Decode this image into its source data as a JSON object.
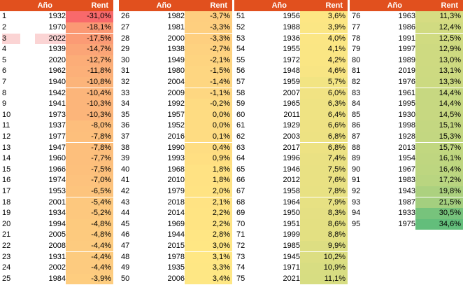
{
  "header": {
    "year_label": "Año",
    "rent_label": "Rent"
  },
  "colors": {
    "header": "#e1501e",
    "worst": "#f8696b",
    "mid": "#ffe784",
    "best": "#63be7b",
    "selected_row": "#fbd4d4"
  },
  "selected_rank": "3",
  "blocks": [
    [
      [
        "1",
        "1932",
        "-31,0%",
        -31.0
      ],
      [
        "2",
        "1970",
        "-18,1%",
        -18.1
      ],
      [
        "3",
        "2022",
        "-17,5%",
        -17.5
      ],
      [
        "4",
        "1939",
        "-14,7%",
        -14.7
      ],
      [
        "5",
        "2020",
        "-12,7%",
        -12.7
      ],
      [
        "6",
        "1962",
        "-11,8%",
        -11.8
      ],
      [
        "7",
        "1940",
        "-10,8%",
        -10.8
      ],
      [
        "8",
        "1942",
        "-10,4%",
        -10.4
      ],
      [
        "9",
        "1941",
        "-10,3%",
        -10.3
      ],
      [
        "10",
        "1973",
        "-10,3%",
        -10.3
      ],
      [
        "11",
        "1937",
        "-8,0%",
        -8.0
      ],
      [
        "12",
        "1977",
        "-7,8%",
        -7.8
      ],
      [
        "13",
        "1947",
        "-7,8%",
        -7.8
      ],
      [
        "14",
        "1960",
        "-7,7%",
        -7.7
      ],
      [
        "15",
        "1966",
        "-7,5%",
        -7.5
      ],
      [
        "16",
        "1974",
        "-7,0%",
        -7.0
      ],
      [
        "17",
        "1953",
        "-6,5%",
        -6.5
      ],
      [
        "18",
        "2001",
        "-5,4%",
        -5.4
      ],
      [
        "19",
        "1934",
        "-5,2%",
        -5.2
      ],
      [
        "20",
        "1994",
        "-4,8%",
        -4.8
      ],
      [
        "21",
        "2005",
        "-4,8%",
        -4.8
      ],
      [
        "22",
        "2008",
        "-4,4%",
        -4.4
      ],
      [
        "23",
        "1931",
        "-4,4%",
        -4.4
      ],
      [
        "24",
        "2002",
        "-4,4%",
        -4.4
      ],
      [
        "25",
        "1984",
        "-3,9%",
        -3.9
      ]
    ],
    [
      [
        "26",
        "1982",
        "-3,7%",
        -3.7
      ],
      [
        "27",
        "1981",
        "-3,3%",
        -3.3
      ],
      [
        "28",
        "2000",
        "-3,3%",
        -3.3
      ],
      [
        "29",
        "1938",
        "-2,7%",
        -2.7
      ],
      [
        "30",
        "1949",
        "-2,1%",
        -2.1
      ],
      [
        "31",
        "1980",
        "-1,5%",
        -1.5
      ],
      [
        "32",
        "2004",
        "-1,4%",
        -1.4
      ],
      [
        "33",
        "2009",
        "-1,1%",
        -1.1
      ],
      [
        "34",
        "1992",
        "-0,2%",
        -0.2
      ],
      [
        "35",
        "1957",
        "0,0%",
        0.0
      ],
      [
        "36",
        "1952",
        "0,0%",
        0.0
      ],
      [
        "37",
        "2016",
        "0,1%",
        0.1
      ],
      [
        "38",
        "1990",
        "0,4%",
        0.4
      ],
      [
        "39",
        "1993",
        "0,9%",
        0.9
      ],
      [
        "40",
        "1968",
        "1,8%",
        1.8
      ],
      [
        "41",
        "2010",
        "1,8%",
        1.8
      ],
      [
        "42",
        "1979",
        "2,0%",
        2.0
      ],
      [
        "43",
        "2018",
        "2,1%",
        2.1
      ],
      [
        "44",
        "2014",
        "2,2%",
        2.2
      ],
      [
        "45",
        "1969",
        "2,2%",
        2.2
      ],
      [
        "46",
        "1944",
        "2,8%",
        2.8
      ],
      [
        "47",
        "2015",
        "3,0%",
        3.0
      ],
      [
        "48",
        "1978",
        "3,1%",
        3.1
      ],
      [
        "49",
        "1935",
        "3,3%",
        3.3
      ],
      [
        "50",
        "2006",
        "3,4%",
        3.4
      ]
    ],
    [
      [
        "51",
        "1956",
        "3,6%",
        3.6
      ],
      [
        "52",
        "1988",
        "3,9%",
        3.9
      ],
      [
        "53",
        "1936",
        "4,0%",
        4.0
      ],
      [
        "54",
        "1955",
        "4,1%",
        4.1
      ],
      [
        "55",
        "1972",
        "4,2%",
        4.2
      ],
      [
        "56",
        "1948",
        "4,6%",
        4.6
      ],
      [
        "57",
        "1959",
        "5,7%",
        5.7
      ],
      [
        "58",
        "2007",
        "6,0%",
        6.0
      ],
      [
        "59",
        "1965",
        "6,3%",
        6.3
      ],
      [
        "60",
        "2011",
        "6,4%",
        6.4
      ],
      [
        "61",
        "1929",
        "6,6%",
        6.6
      ],
      [
        "62",
        "2003",
        "6,8%",
        6.8
      ],
      [
        "63",
        "2017",
        "6,8%",
        6.8
      ],
      [
        "64",
        "1996",
        "7,4%",
        7.4
      ],
      [
        "65",
        "1946",
        "7,5%",
        7.5
      ],
      [
        "66",
        "2012",
        "7,6%",
        7.6
      ],
      [
        "67",
        "1958",
        "7,8%",
        7.8
      ],
      [
        "68",
        "1964",
        "7,9%",
        7.9
      ],
      [
        "69",
        "1950",
        "8,3%",
        8.3
      ],
      [
        "70",
        "1951",
        "8,6%",
        8.6
      ],
      [
        "71",
        "1999",
        "8,8%",
        8.8
      ],
      [
        "72",
        "1985",
        "9,9%",
        9.9
      ],
      [
        "73",
        "1945",
        "10,2%",
        10.2
      ],
      [
        "74",
        "1971",
        "10,9%",
        10.9
      ],
      [
        "75",
        "2021",
        "11,1%",
        11.1
      ]
    ],
    [
      [
        "76",
        "1963",
        "11,3%",
        11.3
      ],
      [
        "77",
        "1986",
        "12,4%",
        12.4
      ],
      [
        "78",
        "1991",
        "12,5%",
        12.5
      ],
      [
        "79",
        "1997",
        "12,9%",
        12.9
      ],
      [
        "80",
        "1989",
        "13,0%",
        13.0
      ],
      [
        "81",
        "2019",
        "13,1%",
        13.1
      ],
      [
        "82",
        "1976",
        "13,3%",
        13.3
      ],
      [
        "83",
        "1961",
        "14,4%",
        14.4
      ],
      [
        "84",
        "1995",
        "14,4%",
        14.4
      ],
      [
        "85",
        "1930",
        "14,5%",
        14.5
      ],
      [
        "86",
        "1998",
        "15,1%",
        15.1
      ],
      [
        "87",
        "1928",
        "15,3%",
        15.3
      ],
      [
        "88",
        "2013",
        "15,7%",
        15.7
      ],
      [
        "89",
        "1954",
        "16,1%",
        16.1
      ],
      [
        "90",
        "1967",
        "16,4%",
        16.4
      ],
      [
        "91",
        "1983",
        "17,2%",
        17.2
      ],
      [
        "92",
        "1943",
        "19,8%",
        19.8
      ],
      [
        "93",
        "1987",
        "21,5%",
        21.5
      ],
      [
        "94",
        "1933",
        "30,5%",
        30.5
      ],
      [
        "95",
        "1975",
        "34,6%",
        34.6
      ]
    ]
  ]
}
